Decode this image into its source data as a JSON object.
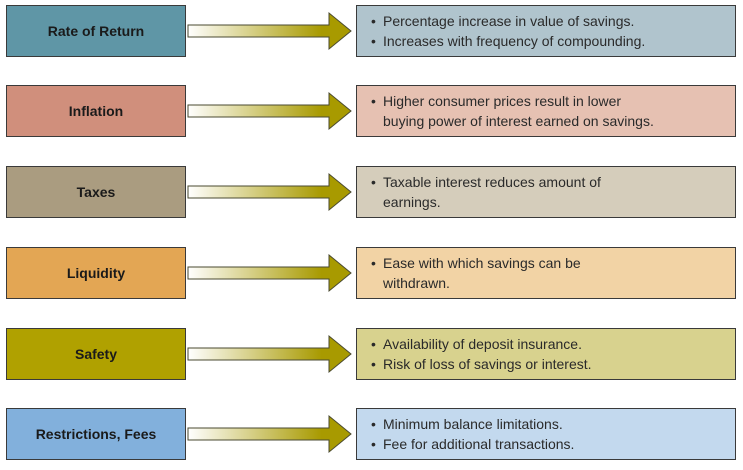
{
  "rows": [
    {
      "label": "Rate of Return",
      "label_color": "#5f96a6",
      "desc_color": "#b0c4cd",
      "lines": [
        {
          "text": "Percentage increase in value of savings.",
          "bullet": true
        },
        {
          "text": "Increases with frequency of compounding.",
          "bullet": true
        }
      ]
    },
    {
      "label": "Inflation",
      "label_color": "#d08f7c",
      "desc_color": "#e6c1b2",
      "lines": [
        {
          "text": "Higher consumer prices result in lower",
          "bullet": true
        },
        {
          "text": "buying power of interest earned on savings.",
          "bullet": false
        }
      ]
    },
    {
      "label": "Taxes",
      "label_color": "#aa9c80",
      "desc_color": "#d5cdbb",
      "lines": [
        {
          "text": "Taxable interest reduces amount of",
          "bullet": true
        },
        {
          "text": "earnings.",
          "bullet": false
        }
      ]
    },
    {
      "label": "Liquidity",
      "label_color": "#e3a654",
      "desc_color": "#f2d3a5",
      "lines": [
        {
          "text": "Ease with which savings can be",
          "bullet": true
        },
        {
          "text": "withdrawn.",
          "bullet": false
        }
      ]
    },
    {
      "label": "Safety",
      "label_color": "#b0a100",
      "desc_color": "#d8d28e",
      "lines": [
        {
          "text": "Availability of deposit insurance.",
          "bullet": true
        },
        {
          "text": "Risk of loss of savings or interest.",
          "bullet": true
        }
      ]
    },
    {
      "label": "Restrictions, Fees",
      "label_color": "#82b0dc",
      "desc_color": "#c3d9ee",
      "lines": [
        {
          "text": "Minimum balance limitations.",
          "bullet": true
        },
        {
          "text": "Fee for additional transactions.",
          "bullet": true
        }
      ]
    }
  ],
  "arrow_color": "#a89a00",
  "arrow_fade_color": "#ffffff"
}
